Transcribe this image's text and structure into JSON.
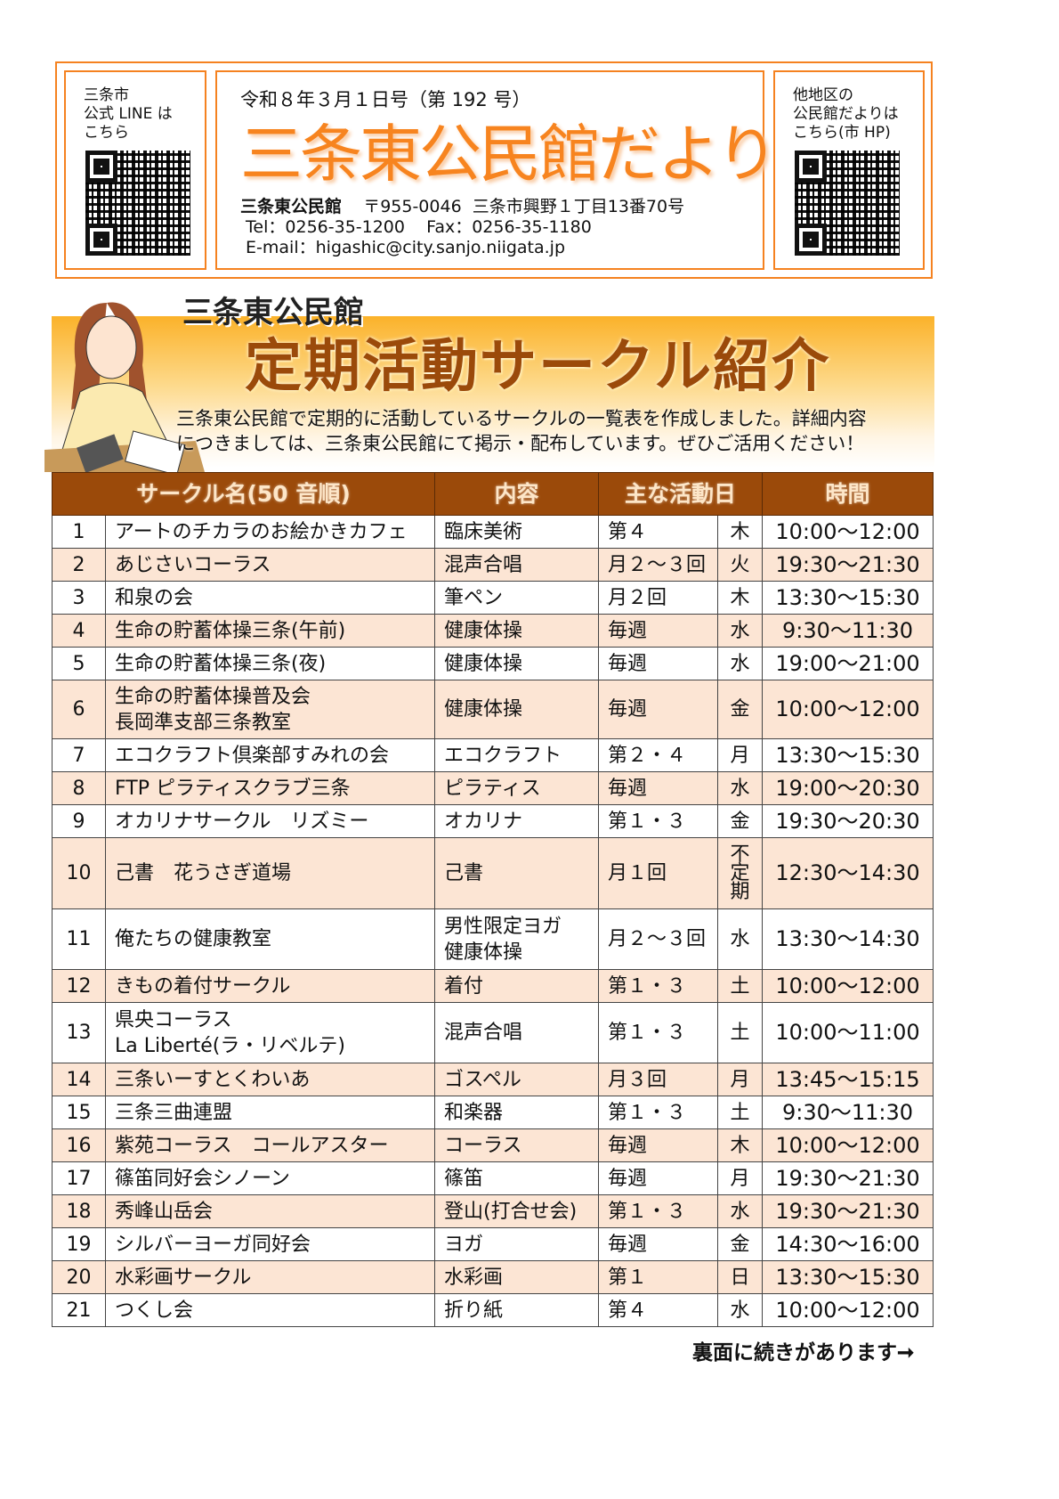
{
  "header": {
    "left_qr_label": "三条市\n公式 LINE は\nこちら",
    "right_qr_label": "他地区の\n公民館だよりは\nこちら(市 HP)",
    "issue": "令和８年３月１日号（第 192 号）",
    "title": "三条東公民館だより",
    "org": "三条東公民館",
    "address": "〒955-0046  三条市興野１丁目13番70号",
    "tel_fax": "Tel：0256-35-1200    Fax：0256-35-1180",
    "email": "E-mail：higashic@city.sanjo.niigata.jp"
  },
  "banner": {
    "subtitle": "三条東公民館",
    "title": "定期活動サークル紹介",
    "description": "三条東公民館で定期的に活動しているサークルの一覧表を作成しました。詳細内容\nにつきましては、三条東公民館にて掲示・配布しています。ぜひご活用ください！"
  },
  "table": {
    "headers": [
      "サークル名(50 音順)",
      "内容",
      "主な活動日",
      "時間"
    ],
    "rows": [
      {
        "no": "1",
        "name": "アートのチカラのお絵かきカフェ",
        "content": "臨床美術",
        "freq": "第４",
        "day": "木",
        "time": "10:00～12:00"
      },
      {
        "no": "2",
        "name": "あじさいコーラス",
        "content": "混声合唱",
        "freq": "月２～３回",
        "day": "火",
        "time": "19:30～21:30"
      },
      {
        "no": "3",
        "name": "和泉の会",
        "content": "筆ペン",
        "freq": "月２回",
        "day": "木",
        "time": "13:30～15:30"
      },
      {
        "no": "4",
        "name": "生命の貯蓄体操三条(午前)",
        "content": "健康体操",
        "freq": "毎週",
        "day": "水",
        "time": "9:30～11:30"
      },
      {
        "no": "5",
        "name": "生命の貯蓄体操三条(夜)",
        "content": "健康体操",
        "freq": "毎週",
        "day": "水",
        "time": "19:00～21:00"
      },
      {
        "no": "6",
        "name": "生命の貯蓄体操普及会\n長岡準支部三条教室",
        "content": "健康体操",
        "freq": "毎週",
        "day": "金",
        "time": "10:00～12:00"
      },
      {
        "no": "7",
        "name": "エコクラフト倶楽部すみれの会",
        "content": "エコクラフト",
        "freq": "第２・４",
        "day": "月",
        "time": "13:30～15:30"
      },
      {
        "no": "8",
        "name": "FTP ピラティスクラブ三条",
        "content": "ピラティス",
        "freq": "毎週",
        "day": "水",
        "time": "19:00～20:30"
      },
      {
        "no": "9",
        "name": "オカリナサークル　リズミー",
        "content": "オカリナ",
        "freq": "第１・３",
        "day": "金",
        "time": "19:30～20:30"
      },
      {
        "no": "10",
        "name": "己書　花うさぎ道場",
        "content": "己書",
        "freq": "月１回",
        "day": "不\n定\n期",
        "time": "12:30～14:30"
      },
      {
        "no": "11",
        "name": "俺たちの健康教室",
        "content": "男性限定ヨガ\n健康体操",
        "freq": "月２～３回",
        "day": "水",
        "time": "13:30～14:30"
      },
      {
        "no": "12",
        "name": "きもの着付サークル",
        "content": "着付",
        "freq": "第１・３",
        "day": "土",
        "time": "10:00～12:00"
      },
      {
        "no": "13",
        "name": "県央コーラス\nLa Liberté(ラ・リベルテ)",
        "content": "混声合唱",
        "freq": "第１・３",
        "day": "土",
        "time": "10:00～11:00"
      },
      {
        "no": "14",
        "name": "三条いーすとくわいあ",
        "content": "ゴスペル",
        "freq": "月３回",
        "day": "月",
        "time": "13:45～15:15"
      },
      {
        "no": "15",
        "name": "三条三曲連盟",
        "content": "和楽器",
        "freq": "第１・３",
        "day": "土",
        "time": "9:30～11:30"
      },
      {
        "no": "16",
        "name": "紫苑コーラス　コールアスター",
        "content": "コーラス",
        "freq": "毎週",
        "day": "木",
        "time": "10:00～12:00"
      },
      {
        "no": "17",
        "name": "篠笛同好会シノーン",
        "content": "篠笛",
        "freq": "毎週",
        "day": "月",
        "time": "19:30～21:30"
      },
      {
        "no": "18",
        "name": "秀峰山岳会",
        "content": "登山(打合せ会)",
        "freq": "第１・３",
        "day": "水",
        "time": "19:30～21:30"
      },
      {
        "no": "19",
        "name": "シルバーヨーガ同好会",
        "content": "ヨガ",
        "freq": "毎週",
        "day": "金",
        "time": "14:30～16:00"
      },
      {
        "no": "20",
        "name": "水彩画サークル",
        "content": "水彩画",
        "freq": "第１",
        "day": "日",
        "time": "13:30～15:30"
      },
      {
        "no": "21",
        "name": "つくし会",
        "content": "折り紙",
        "freq": "第４",
        "day": "水",
        "time": "10:00～12:00"
      }
    ]
  },
  "footer": {
    "continued": "裏面に続きがあります➞"
  },
  "colors": {
    "accent": "#f58220",
    "header_bg": "#9b4a0a",
    "row_alt": "#fce5d4"
  }
}
